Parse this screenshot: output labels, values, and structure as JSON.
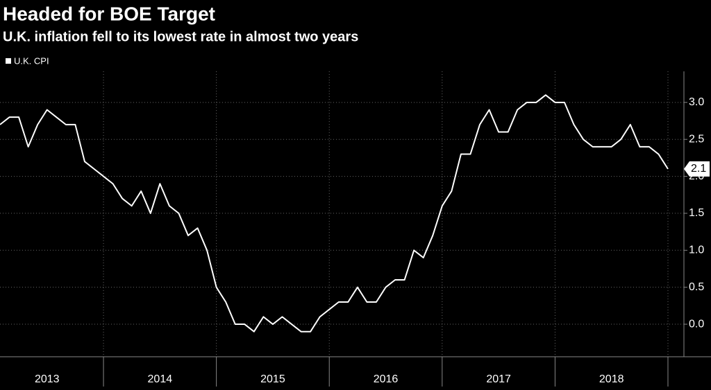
{
  "chart_data": {
    "type": "line",
    "title": "Headed for BOE Target",
    "subtitle": "U.K. inflation fell to its lowest rate in almost two years",
    "categories": [
      null,
      null,
      null,
      null,
      null,
      "2013",
      null,
      null,
      null,
      null,
      null,
      null,
      null,
      null,
      null,
      null,
      null,
      "2014",
      null,
      null,
      null,
      null,
      null,
      null,
      null,
      null,
      null,
      null,
      null,
      "2015",
      null,
      null,
      null,
      null,
      null,
      null,
      null,
      null,
      null,
      null,
      null,
      "2016",
      null,
      null,
      null,
      null,
      null,
      null,
      null,
      null,
      null,
      null,
      null,
      "2017",
      null,
      null,
      null,
      null,
      null,
      null,
      null,
      null,
      null,
      null,
      null,
      "2018",
      null,
      null,
      null,
      null,
      null,
      null
    ],
    "series": [
      {
        "name": "U.K. CPI",
        "color": "#ffffff",
        "values": [
          2.7,
          2.8,
          2.8,
          2.4,
          2.7,
          2.9,
          2.8,
          2.7,
          2.7,
          2.2,
          2.1,
          2.0,
          1.9,
          1.7,
          1.6,
          1.8,
          1.5,
          1.9,
          1.6,
          1.5,
          1.2,
          1.3,
          1.0,
          0.5,
          0.3,
          0.0,
          0.0,
          -0.1,
          0.1,
          0.0,
          0.1,
          0.0,
          -0.1,
          -0.1,
          0.1,
          0.2,
          0.3,
          0.3,
          0.5,
          0.3,
          0.3,
          0.5,
          0.6,
          0.6,
          1.0,
          0.9,
          1.2,
          1.6,
          1.8,
          2.3,
          2.3,
          2.7,
          2.9,
          2.6,
          2.6,
          2.9,
          3.0,
          3.0,
          3.1,
          3.0,
          3.0,
          2.7,
          2.5,
          2.4,
          2.4,
          2.4,
          2.5,
          2.7,
          2.4,
          2.4,
          2.3,
          2.1
        ]
      }
    ],
    "ylim": [
      -0.44,
      3.42
    ],
    "yticks": [
      {
        "value": 0,
        "label": "0.0"
      },
      0.5,
      {
        "value": 1,
        "label": "1.0"
      },
      1.5,
      {
        "value": 2,
        "label": "2.0"
      },
      2.5,
      {
        "value": 3,
        "label": "3.0"
      }
    ],
    "grid": true,
    "legend": "top-left"
  }
}
